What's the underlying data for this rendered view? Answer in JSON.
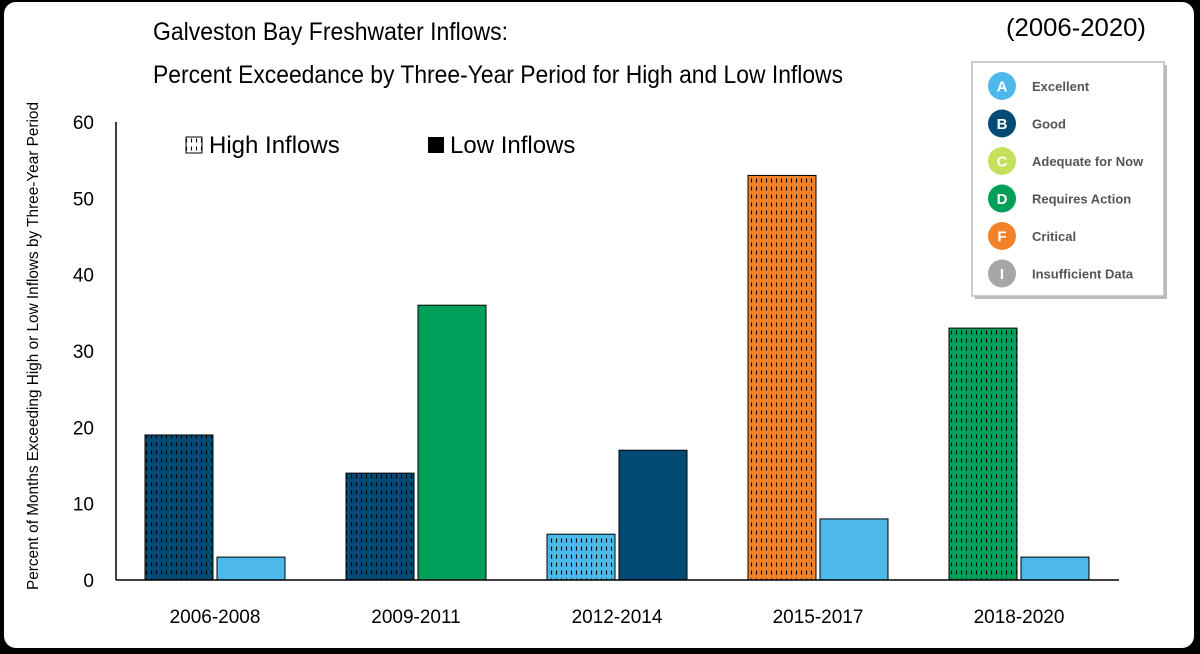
{
  "chart_data": {
    "type": "bar",
    "title_line1": "Galveston Bay Freshwater Inflows:",
    "title_line2": "Percent Exceedance by Three-Year Period for High and Low Inflows",
    "date_range": "(2006-2020)",
    "ylabel": "Percent of Months Exceeding High or Low Inflows by Three-Year Period",
    "xlabel": "",
    "ylim": [
      0,
      60
    ],
    "yticks": [
      0,
      10,
      20,
      30,
      40,
      50,
      60
    ],
    "categories": [
      "2006-2008",
      "2009-2011",
      "2012-2014",
      "2015-2017",
      "2018-2020"
    ],
    "series": [
      {
        "name": "High Inflows",
        "pattern": "dashed",
        "values": [
          19,
          14,
          6,
          53,
          33
        ],
        "grades": [
          "B",
          "B",
          "A",
          "F",
          "D"
        ]
      },
      {
        "name": "Low Inflows",
        "pattern": "solid",
        "values": [
          3,
          36,
          17,
          8,
          3
        ],
        "grades": [
          "A",
          "D",
          "B",
          "A",
          "A"
        ]
      }
    ],
    "legend_placement": "top",
    "grid": false
  },
  "grade_legend": {
    "items": [
      {
        "letter": "A",
        "label": "Excellent",
        "color": "#4db8ea"
      },
      {
        "letter": "B",
        "label": "Good",
        "color": "#034b75"
      },
      {
        "letter": "C",
        "label": "Adequate for Now",
        "color": "#c5e05a"
      },
      {
        "letter": "D",
        "label": "Requires Action",
        "color": "#00a05a"
      },
      {
        "letter": "F",
        "label": "Critical",
        "color": "#f2822a"
      },
      {
        "letter": "I",
        "label": "Insufficient Data",
        "color": "#a6a6a6"
      }
    ]
  }
}
